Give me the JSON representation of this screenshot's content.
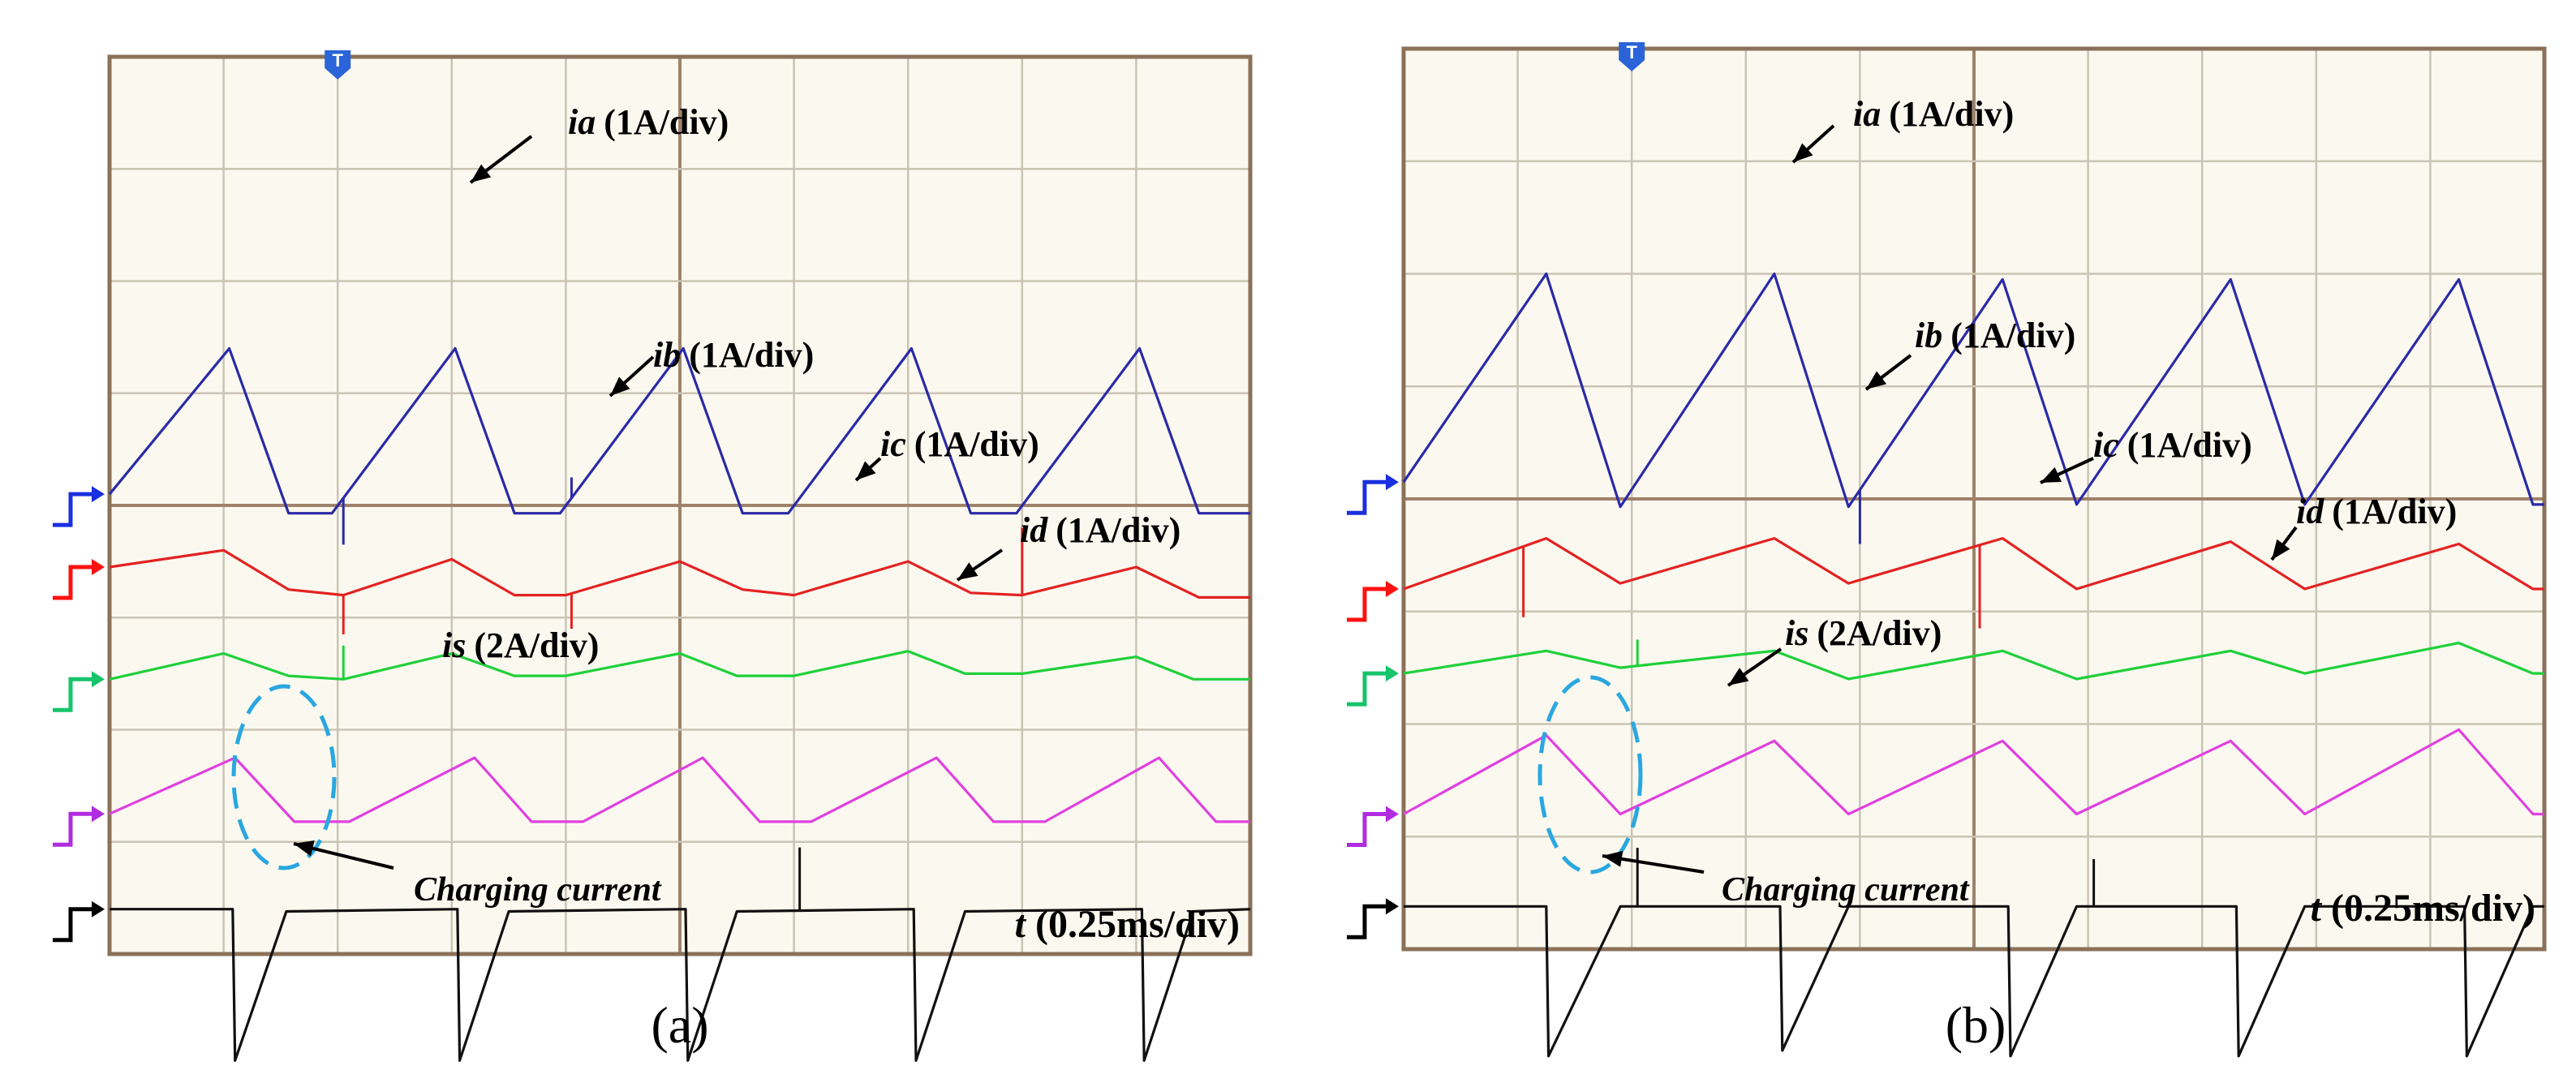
{
  "colors": {
    "ia": "#2a2aa8",
    "ib": "#e32222",
    "ic": "#1fd03a",
    "id": "#e040e0",
    "is": "#111111",
    "grid": "#c9c4b4",
    "screen": "#fbf9ef",
    "frame": "#8a7158",
    "center": "#a0826a",
    "ellipse": "#2aa7e0",
    "marker_ia": "#1a2fe0",
    "marker_ib": "#ff1111",
    "marker_ic": "#16c46a",
    "marker_id": "#b12ce0",
    "marker_is": "#000000",
    "trigger": "#2a64d8"
  },
  "chart_data": [
    {
      "type": "line",
      "panel": "a",
      "caption": "(a)",
      "title": "",
      "xlabel_prefix": "t",
      "xlabel_unit": "(0.25ms/div)",
      "x_unit": "div",
      "xlim": [
        0,
        10
      ],
      "ylim": [
        -4,
        4
      ],
      "grid": true,
      "trigger_marker": "T",
      "series": [
        {
          "name": "ia",
          "scale": "(1A/div)",
          "points": [
            [
              0,
              0.1
            ],
            [
              1.05,
              1.4
            ],
            [
              1.57,
              -0.07
            ],
            [
              1.95,
              -0.07
            ],
            [
              3.03,
              1.4
            ],
            [
              3.55,
              -0.07
            ],
            [
              3.95,
              -0.07
            ],
            [
              5.03,
              1.4
            ],
            [
              5.55,
              -0.07
            ],
            [
              5.95,
              -0.07
            ],
            [
              7.03,
              1.4
            ],
            [
              7.55,
              -0.07
            ],
            [
              7.95,
              -0.07
            ],
            [
              9.03,
              1.4
            ],
            [
              9.55,
              -0.07
            ],
            [
              10,
              -0.07
            ]
          ],
          "spikes": [
            [
              2.05,
              -0.35
            ],
            [
              4.05,
              0.25
            ]
          ]
        },
        {
          "name": "ib",
          "scale": "(1A/div)",
          "points": [
            [
              0,
              -0.55
            ],
            [
              1.0,
              -0.4
            ],
            [
              1.57,
              -0.75
            ],
            [
              2.05,
              -0.8
            ],
            [
              3.0,
              -0.48
            ],
            [
              3.55,
              -0.8
            ],
            [
              4.0,
              -0.8
            ],
            [
              5.0,
              -0.5
            ],
            [
              5.55,
              -0.75
            ],
            [
              6.0,
              -0.8
            ],
            [
              7.0,
              -0.5
            ],
            [
              7.55,
              -0.78
            ],
            [
              8.0,
              -0.8
            ],
            [
              9.0,
              -0.55
            ],
            [
              9.55,
              -0.82
            ],
            [
              10,
              -0.82
            ]
          ],
          "spikes": [
            [
              2.05,
              -1.15
            ],
            [
              4.05,
              -1.1
            ],
            [
              8.0,
              -0.2
            ]
          ]
        },
        {
          "name": "ic",
          "scale": "(1A/div)",
          "points": [
            [
              0,
              -1.55
            ],
            [
              1.0,
              -1.32
            ],
            [
              1.57,
              -1.52
            ],
            [
              2.05,
              -1.55
            ],
            [
              3.0,
              -1.32
            ],
            [
              3.55,
              -1.52
            ],
            [
              4.0,
              -1.52
            ],
            [
              5.0,
              -1.32
            ],
            [
              5.5,
              -1.52
            ],
            [
              6.0,
              -1.52
            ],
            [
              7.0,
              -1.3
            ],
            [
              7.5,
              -1.5
            ],
            [
              8.0,
              -1.5
            ],
            [
              9.0,
              -1.35
            ],
            [
              9.5,
              -1.55
            ],
            [
              10,
              -1.55
            ]
          ],
          "spikes": [
            [
              2.05,
              -1.25
            ]
          ]
        },
        {
          "name": "id",
          "scale": "(1A/div)",
          "points": [
            [
              0,
              -2.75
            ],
            [
              1.1,
              -2.25
            ],
            [
              1.62,
              -2.82
            ],
            [
              2.1,
              -2.82
            ],
            [
              3.2,
              -2.25
            ],
            [
              3.7,
              -2.82
            ],
            [
              4.15,
              -2.82
            ],
            [
              5.2,
              -2.25
            ],
            [
              5.7,
              -2.82
            ],
            [
              6.15,
              -2.82
            ],
            [
              7.25,
              -2.25
            ],
            [
              7.75,
              -2.82
            ],
            [
              8.2,
              -2.82
            ],
            [
              9.2,
              -2.25
            ],
            [
              9.7,
              -2.82
            ],
            [
              10,
              -2.82
            ]
          ],
          "spikes": []
        },
        {
          "name": "is",
          "scale": "(2A/div)",
          "points": [
            [
              0,
              -3.6
            ],
            [
              1.08,
              -3.6
            ],
            [
              1.1,
              -4.95
            ],
            [
              1.55,
              -3.62
            ],
            [
              3.05,
              -3.6
            ],
            [
              3.07,
              -4.95
            ],
            [
              3.5,
              -3.62
            ],
            [
              5.05,
              -3.6
            ],
            [
              5.07,
              -4.95
            ],
            [
              5.5,
              -3.62
            ],
            [
              7.05,
              -3.6
            ],
            [
              7.07,
              -4.95
            ],
            [
              7.5,
              -3.62
            ],
            [
              9.05,
              -3.6
            ],
            [
              9.07,
              -4.95
            ],
            [
              9.5,
              -3.62
            ],
            [
              10,
              -3.6
            ]
          ],
          "spikes": [
            [
              6.05,
              -3.05
            ]
          ]
        }
      ],
      "annotations": [
        {
          "text": "Charging current"
        }
      ]
    },
    {
      "type": "line",
      "panel": "b",
      "caption": "(b)",
      "title": "",
      "xlabel_prefix": "t",
      "xlabel_unit": "(0.25ms/div)",
      "x_unit": "div",
      "xlim": [
        0,
        10
      ],
      "ylim": [
        -4,
        4
      ],
      "grid": true,
      "trigger_marker": "T",
      "series": [
        {
          "name": "ia",
          "scale": "(1A/div)",
          "points": [
            [
              0,
              0.15
            ],
            [
              1.25,
              2.0
            ],
            [
              1.9,
              -0.07
            ],
            [
              3.25,
              2.0
            ],
            [
              3.9,
              -0.07
            ],
            [
              5.25,
              1.95
            ],
            [
              5.9,
              -0.05
            ],
            [
              7.25,
              1.95
            ],
            [
              7.9,
              -0.05
            ],
            [
              9.25,
              1.95
            ],
            [
              9.9,
              -0.05
            ],
            [
              10,
              -0.05
            ]
          ],
          "spikes": [
            [
              4.0,
              -0.4
            ]
          ]
        },
        {
          "name": "ib",
          "scale": "(1A/div)",
          "points": [
            [
              0,
              -0.8
            ],
            [
              1.25,
              -0.35
            ],
            [
              1.9,
              -0.75
            ],
            [
              3.25,
              -0.35
            ],
            [
              3.9,
              -0.75
            ],
            [
              5.25,
              -0.35
            ],
            [
              5.9,
              -0.8
            ],
            [
              7.25,
              -0.38
            ],
            [
              7.9,
              -0.8
            ],
            [
              9.25,
              -0.4
            ],
            [
              9.9,
              -0.8
            ],
            [
              10,
              -0.8
            ]
          ],
          "spikes": [
            [
              1.05,
              -1.05
            ],
            [
              5.05,
              -1.15
            ]
          ]
        },
        {
          "name": "ic",
          "scale": "(1A/div)",
          "points": [
            [
              0,
              -1.55
            ],
            [
              1.25,
              -1.35
            ],
            [
              1.9,
              -1.5
            ],
            [
              3.25,
              -1.35
            ],
            [
              3.9,
              -1.6
            ],
            [
              5.25,
              -1.35
            ],
            [
              5.9,
              -1.6
            ],
            [
              7.25,
              -1.35
            ],
            [
              7.9,
              -1.55
            ],
            [
              9.25,
              -1.28
            ],
            [
              9.9,
              -1.55
            ],
            [
              10,
              -1.55
            ]
          ],
          "spikes": [
            [
              2.05,
              -1.25
            ]
          ]
        },
        {
          "name": "id",
          "scale": "(1A/div)",
          "points": [
            [
              0,
              -2.8
            ],
            [
              1.25,
              -2.1
            ],
            [
              1.9,
              -2.8
            ],
            [
              3.25,
              -2.15
            ],
            [
              3.9,
              -2.8
            ],
            [
              5.25,
              -2.15
            ],
            [
              5.9,
              -2.8
            ],
            [
              7.25,
              -2.15
            ],
            [
              7.9,
              -2.8
            ],
            [
              9.25,
              -2.05
            ],
            [
              9.9,
              -2.8
            ],
            [
              10,
              -2.8
            ]
          ],
          "spikes": []
        },
        {
          "name": "is",
          "scale": "(2A/div)",
          "points": [
            [
              0,
              -3.62
            ],
            [
              1.25,
              -3.62
            ],
            [
              1.27,
              -4.95
            ],
            [
              1.9,
              -3.62
            ],
            [
              3.3,
              -3.62
            ],
            [
              3.32,
              -4.9
            ],
            [
              3.9,
              -3.62
            ],
            [
              5.3,
              -3.62
            ],
            [
              5.32,
              -4.95
            ],
            [
              5.9,
              -3.62
            ],
            [
              7.3,
              -3.62
            ],
            [
              7.32,
              -4.95
            ],
            [
              7.9,
              -3.62
            ],
            [
              9.3,
              -3.62
            ],
            [
              9.32,
              -4.95
            ],
            [
              9.9,
              -3.62
            ],
            [
              10,
              -3.62
            ]
          ],
          "spikes": [
            [
              2.05,
              -3.1
            ],
            [
              6.05,
              -3.2
            ]
          ]
        }
      ],
      "annotations": [
        {
          "text": "Charging current"
        }
      ]
    }
  ]
}
